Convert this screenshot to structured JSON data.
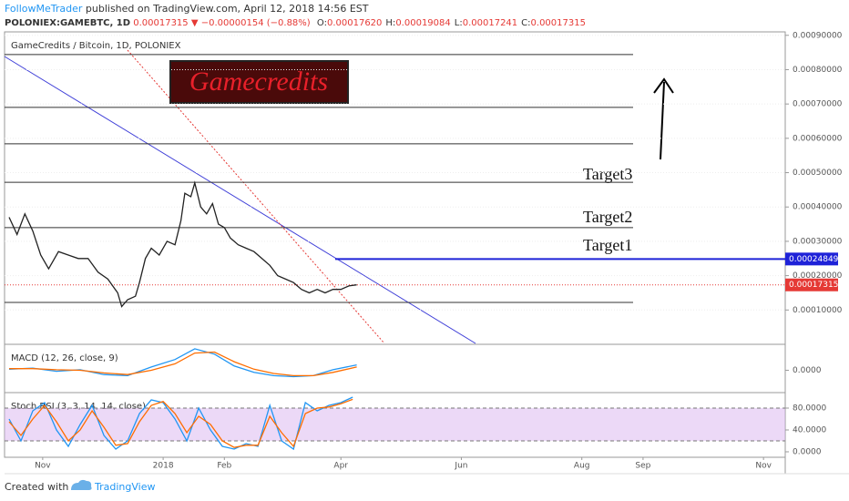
{
  "header": {
    "author": "FollowMeTrader",
    "published": "published on TradingView.com, April 12, 2018 14:56 EST",
    "symbol": "POLONIEX:GAMEBTC, 1D",
    "last": "0.00017315",
    "arrow": "▼",
    "change": "−0.00000154 (−0.88%)",
    "ohlc": [
      {
        "label": "O:",
        "value": "0.00017620"
      },
      {
        "label": "H:",
        "value": "0.00019084"
      },
      {
        "label": "L:",
        "value": "0.00017241"
      },
      {
        "label": "C:",
        "value": "0.00017315"
      }
    ]
  },
  "chart_data": [
    {
      "type": "line",
      "title": "GameCredits / Bitcoin, 1D, POLONIEX",
      "banner": "Gamecredits",
      "color": "#222222",
      "x": [
        0,
        4,
        8,
        12,
        16,
        20,
        25,
        30,
        35,
        40,
        45,
        50,
        55,
        57,
        60,
        64,
        66,
        69,
        72,
        76,
        80,
        84,
        87,
        89,
        92,
        94,
        97,
        100,
        103,
        106,
        109,
        112,
        116,
        120,
        124,
        128,
        132,
        136,
        140,
        144,
        148,
        152,
        156,
        160,
        164,
        168,
        172,
        176
      ],
      "values": [
        0.00037,
        0.00032,
        0.00038,
        0.00033,
        0.00026,
        0.00022,
        0.00027,
        0.00026,
        0.00025,
        0.00025,
        0.00021,
        0.00019,
        0.00015,
        0.00011,
        0.00013,
        0.00014,
        0.00018,
        0.00025,
        0.00028,
        0.00026,
        0.0003,
        0.00029,
        0.00036,
        0.00044,
        0.00043,
        0.00047,
        0.0004,
        0.00038,
        0.00041,
        0.00035,
        0.00034,
        0.00031,
        0.00029,
        0.00028,
        0.00027,
        0.00025,
        0.00023,
        0.0002,
        0.00019,
        0.00018,
        0.00016,
        0.00015,
        0.00016,
        0.00015,
        0.00016,
        0.00016,
        0.00017,
        0.00017315
      ],
      "xlim": [
        0,
        393
      ],
      "ylim": [
        0,
        0.00091
      ],
      "yticks": [
        {
          "value": 0.0001,
          "label": "0.00010000"
        },
        {
          "value": 0.0002,
          "label": "0.00020000"
        },
        {
          "value": 0.0003,
          "label": "0.00030000"
        },
        {
          "value": 0.0004,
          "label": "0.00040000"
        },
        {
          "value": 0.0005,
          "label": "0.00050000"
        },
        {
          "value": 0.0006,
          "label": "0.00060000"
        },
        {
          "value": 0.0007,
          "label": "0.00070000"
        },
        {
          "value": 0.0008,
          "label": "0.00080000"
        },
        {
          "value": 0.0009,
          "label": "0.00090000"
        }
      ],
      "grid": true,
      "hlines": [
        0.000844,
        0.00069,
        0.000584,
        0.000472,
        0.00034,
        0.000122
      ],
      "annotations": [
        "Target3",
        "Target2",
        "Target1"
      ],
      "target_line": {
        "value": 0.00024849,
        "label": "0.00024849",
        "color": "#1e22d8"
      },
      "price_line": {
        "value": 0.00017315,
        "label": "0.00017315",
        "color": "#e53935"
      }
    },
    {
      "type": "line",
      "title": "MACD (12, 26, close, 9)",
      "x": [
        0,
        12,
        24,
        36,
        48,
        60,
        72,
        84,
        94,
        104,
        114,
        124,
        134,
        144,
        154,
        164,
        176
      ],
      "series": [
        {
          "color": "#2196f3",
          "values": [
            2e-06,
            4e-06,
            -2e-06,
            1e-06,
            -8e-06,
            -1e-05,
            6e-06,
            2e-05,
            4e-05,
            3e-05,
            8e-06,
            -4e-06,
            -1e-05,
            -1.2e-05,
            -1e-05,
            1e-06,
            1e-05
          ]
        },
        {
          "color": "#ff6d00",
          "values": [
            3e-06,
            3e-06,
            1e-06,
            0,
            -5e-06,
            -8e-06,
            0,
            1.2e-05,
            3.2e-05,
            3.4e-05,
            1.6e-05,
            2e-06,
            -6e-06,
            -1e-05,
            -1e-05,
            -4e-06,
            6e-06
          ]
        }
      ],
      "xlim": [
        0,
        393
      ],
      "ylim": [
        -4e-05,
        4.5e-05
      ],
      "yticks": [
        {
          "value": 0,
          "label": "0.0000"
        }
      ]
    },
    {
      "type": "line",
      "title": "Stoch RSI (3, 3, 14, 14, close)",
      "x": [
        0,
        6,
        12,
        18,
        24,
        30,
        36,
        42,
        48,
        54,
        60,
        66,
        72,
        78,
        84,
        90,
        96,
        102,
        108,
        114,
        120,
        126,
        132,
        138,
        144,
        150,
        156,
        162,
        168,
        174
      ],
      "series": [
        {
          "color": "#2196f3",
          "values": [
            60,
            20,
            75,
            90,
            40,
            10,
            50,
            85,
            30,
            5,
            20,
            70,
            95,
            90,
            60,
            20,
            80,
            40,
            10,
            5,
            15,
            10,
            85,
            20,
            5,
            90,
            75,
            85,
            90,
            100
          ]
        },
        {
          "color": "#ff6d00",
          "values": [
            55,
            30,
            60,
            85,
            55,
            20,
            40,
            75,
            45,
            12,
            15,
            55,
            85,
            92,
            70,
            35,
            65,
            50,
            20,
            8,
            12,
            12,
            65,
            35,
            10,
            70,
            80,
            82,
            88,
            96
          ]
        }
      ],
      "bands": [
        20,
        80
      ],
      "xlim": [
        0,
        393
      ],
      "ylim": [
        -6.7,
        106.7
      ],
      "yticks": [
        {
          "value": 80,
          "label": "80.0000"
        },
        {
          "value": 40,
          "label": "40.0000"
        },
        {
          "value": 0,
          "label": "0.0000"
        }
      ],
      "xticks": [
        {
          "value": 17,
          "label": "Nov"
        },
        {
          "value": 78,
          "label": "2018"
        },
        {
          "value": 109,
          "label": "Feb"
        },
        {
          "value": 168,
          "label": "Apr"
        },
        {
          "value": 229,
          "label": "Jun"
        },
        {
          "value": 290,
          "label": "Aug"
        },
        {
          "value": 321,
          "label": "Sep"
        },
        {
          "value": 382,
          "label": "Nov"
        }
      ]
    }
  ],
  "footer": {
    "text": "Created with",
    "brand": "TradingView"
  }
}
